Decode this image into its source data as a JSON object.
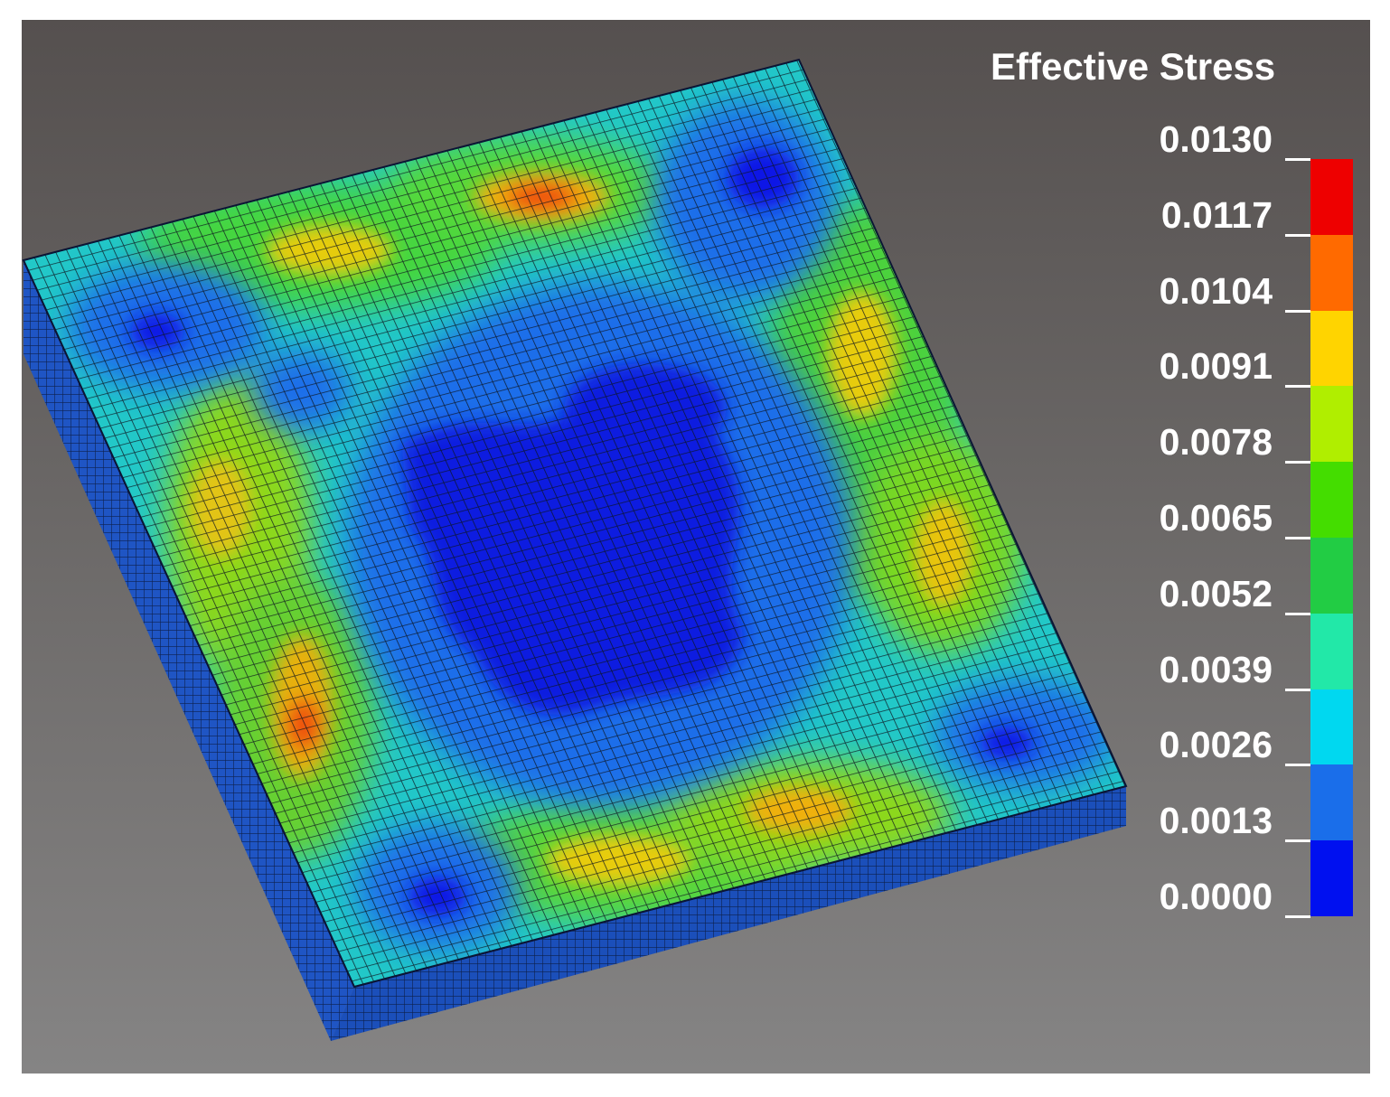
{
  "legend": {
    "title": "Effective Stress",
    "labels": [
      "0.0130",
      "0.0117",
      "0.0104",
      "0.0091",
      "0.0078",
      "0.0065",
      "0.0052",
      "0.0039",
      "0.0026",
      "0.0013",
      "0.0000"
    ],
    "band_colors": [
      "#ee0000",
      "#ff6a00",
      "#ffd400",
      "#b0ee00",
      "#44dd00",
      "#22cc44",
      "#22e8a8",
      "#00d8f0",
      "#1a6eea",
      "#0010f0"
    ]
  },
  "plate": {
    "mesh_color": "#101820",
    "side_color": "#1c4fb8"
  }
}
